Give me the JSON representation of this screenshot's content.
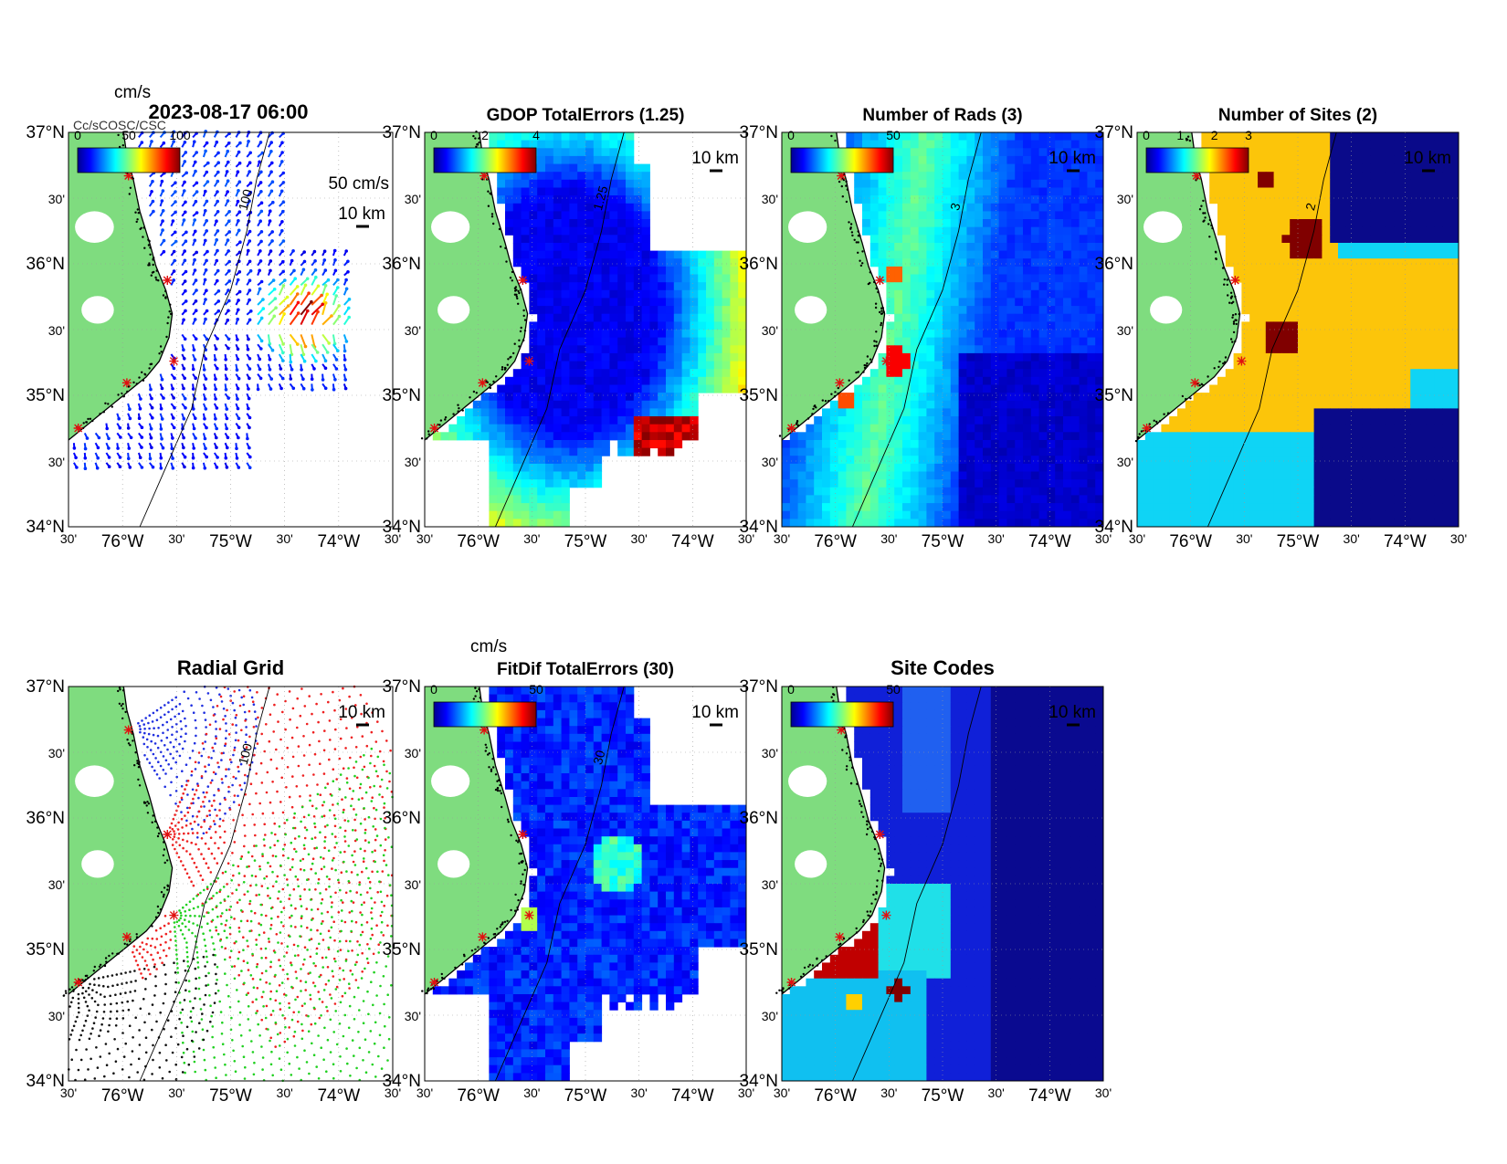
{
  "figure": {
    "timestamp": "2023-08-17 06:00",
    "overlap_text": "Cc/sCOSC/CSC"
  },
  "axes_labels": {
    "lat": [
      "37°N",
      "30'",
      "36°N",
      "30'",
      "35°N",
      "30'",
      "34°N"
    ],
    "lon": [
      "30'",
      "76°W",
      "30'",
      "75°W",
      "30'",
      "74°W",
      "30'"
    ]
  },
  "colors": {
    "land": "#7fdc7f",
    "site_marker": "#e01010",
    "grid_red": "#ee2020",
    "grid_blue": "#2030e0",
    "grid_green": "#20d020",
    "grid_black": "#111111",
    "sites_yellow": "#fcc50a",
    "sites_cyan": "#0fd4f5",
    "sites_navy": "#0a0a8a",
    "sites_dark_red": "#800000"
  },
  "panels": [
    {
      "id": "currents",
      "title": "",
      "colorbar_unit": "cm/s",
      "colorbar_ticks": [
        "0",
        "50",
        "100"
      ],
      "scale_label": "50 cm/s",
      "distance_label": "10 km",
      "contour_label": "100"
    },
    {
      "id": "gdop",
      "title": "GDOP TotalErrors (1.25)",
      "colorbar_unit": "",
      "colorbar_ticks": [
        "0",
        "2",
        "4"
      ],
      "scale_label": "",
      "distance_label": "10 km",
      "contour_label": "1.25"
    },
    {
      "id": "nrads",
      "title": "Number of Rads (3)",
      "colorbar_unit": "",
      "colorbar_ticks": [
        "0",
        "50"
      ],
      "scale_label": "",
      "distance_label": "10 km",
      "contour_label": "3"
    },
    {
      "id": "nsites",
      "title": "Number of Sites (2)",
      "colorbar_unit": "",
      "colorbar_ticks": [
        "0",
        "1",
        "2",
        "3"
      ],
      "scale_label": "",
      "distance_label": "10 km",
      "contour_label": "2"
    },
    {
      "id": "radgrid",
      "title": "Radial Grid",
      "colorbar_unit": "",
      "colorbar_ticks": [],
      "scale_label": "",
      "distance_label": "10 km",
      "contour_label": "100"
    },
    {
      "id": "fitdif",
      "title": "FitDif TotalErrors (30)",
      "colorbar_unit": "cm/s",
      "colorbar_ticks": [
        "0",
        "50"
      ],
      "scale_label": "",
      "distance_label": "10 km",
      "contour_label": "30"
    },
    {
      "id": "sitecodes",
      "title": "Site Codes",
      "colorbar_unit": "",
      "colorbar_ticks": [
        "0",
        "50"
      ],
      "scale_label": "",
      "distance_label": "10 km",
      "contour_label": ""
    }
  ]
}
